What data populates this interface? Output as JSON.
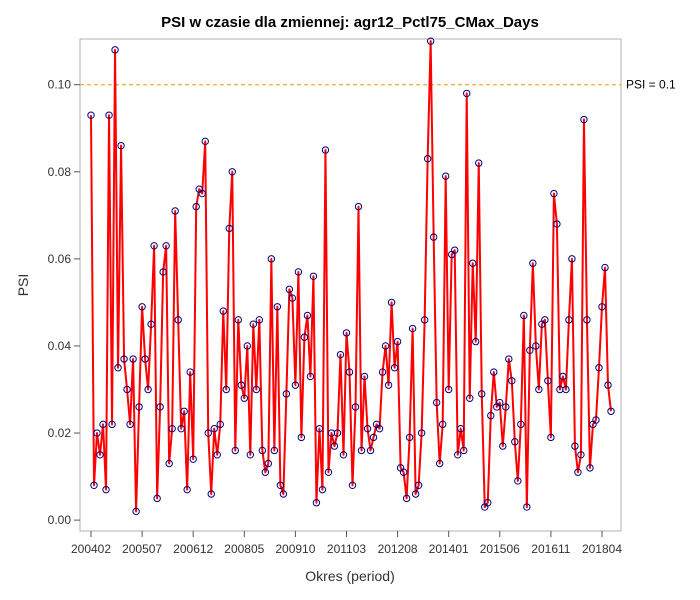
{
  "chart_data": {
    "type": "line",
    "title": "PSI w czasie dla zmiennej: agr12_Pctl75_CMax_Days",
    "xlabel": "Okres (period)",
    "ylabel": "PSI",
    "ylim": [
      -0.0025,
      0.1105
    ],
    "yticks": [
      0.0,
      0.02,
      0.04,
      0.06,
      0.08,
      0.1
    ],
    "ytick_labels": [
      "0.00",
      "0.02",
      "0.04",
      "0.06",
      "0.08",
      "0.10"
    ],
    "xtick_labels": [
      "200402",
      "200507",
      "200612",
      "200805",
      "200910",
      "201103",
      "201208",
      "201401",
      "201506",
      "201611",
      "201804"
    ],
    "xtick_index_step": 17,
    "reference_line": {
      "value": 0.1,
      "label": "PSI = 0.1",
      "color": "#e0a000"
    },
    "line_color": "#ff0000",
    "marker_color": "#000080",
    "grid": false,
    "series": [
      {
        "values": [
          0.093,
          0.008,
          0.02,
          0.015,
          0.022,
          0.007,
          0.093,
          0.022,
          0.108,
          0.035,
          0.086,
          0.037,
          0.03,
          0.022,
          0.037,
          0.002,
          0.026,
          0.049,
          0.037,
          0.03,
          0.045,
          0.063,
          0.005,
          0.026,
          0.057,
          0.063,
          0.013,
          0.021,
          0.071,
          0.046,
          0.021,
          0.025,
          0.007,
          0.034,
          0.014,
          0.072,
          0.076,
          0.075,
          0.087,
          0.02,
          0.006,
          0.021,
          0.015,
          0.022,
          0.048,
          0.03,
          0.067,
          0.08,
          0.016,
          0.046,
          0.031,
          0.028,
          0.04,
          0.015,
          0.045,
          0.03,
          0.046,
          0.016,
          0.011,
          0.013,
          0.06,
          0.016,
          0.049,
          0.008,
          0.006,
          0.029,
          0.053,
          0.051,
          0.031,
          0.057,
          0.019,
          0.042,
          0.047,
          0.033,
          0.056,
          0.004,
          0.021,
          0.007,
          0.085,
          0.011,
          0.02,
          0.017,
          0.02,
          0.038,
          0.015,
          0.043,
          0.034,
          0.008,
          0.026,
          0.072,
          0.016,
          0.033,
          0.021,
          0.016,
          0.019,
          0.022,
          0.021,
          0.034,
          0.04,
          0.031,
          0.05,
          0.035,
          0.041,
          0.012,
          0.011,
          0.005,
          0.019,
          0.044,
          0.006,
          0.008,
          0.02,
          0.046,
          0.083,
          0.11,
          0.065,
          0.027,
          0.013,
          0.022,
          0.079,
          0.03,
          0.061,
          0.062,
          0.015,
          0.021,
          0.016,
          0.098,
          0.028,
          0.059,
          0.041,
          0.082,
          0.029,
          0.003,
          0.004,
          0.024,
          0.034,
          0.026,
          0.027,
          0.017,
          0.026,
          0.037,
          0.032,
          0.018,
          0.009,
          0.022,
          0.047,
          0.003,
          0.039,
          0.059,
          0.04,
          0.03,
          0.045,
          0.046,
          0.032,
          0.019,
          0.075,
          0.068,
          0.03,
          0.033,
          0.03,
          0.046,
          0.06,
          0.017,
          0.011,
          0.015,
          0.092,
          0.046,
          0.012,
          0.022,
          0.023,
          0.035,
          0.049,
          0.058,
          0.031,
          0.025
        ]
      }
    ]
  }
}
